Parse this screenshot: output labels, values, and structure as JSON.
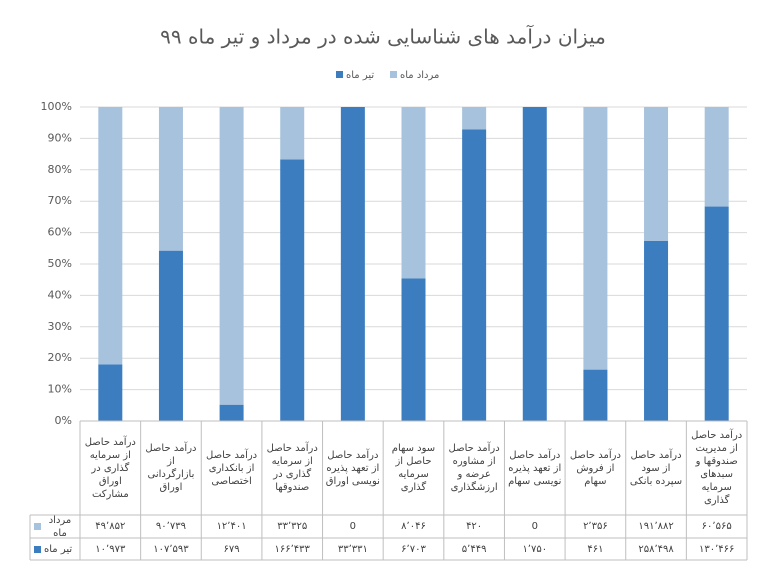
{
  "chart_data": {
    "type": "stacked_percent_bar",
    "title": "میزان درآمد های شناسایی شده در مرداد و تیر ماه ۹۹",
    "categories": [
      "درآمد حاصل از سرمایه گذاری در اوراق مشارکت",
      "درآمد حاصل از بازارگردانی اوراق",
      "درآمد حاصل از بانکداری اختصاصی",
      "درآمد حاصل از سرمایه گذاری در صندوقها",
      "درآمد حاصل از تعهد پذیره نویسی اوراق",
      "سود سهام حاصل از سرمایه گذاری",
      "درآمد حاصل از مشاوره عرضه و ارزشگذاری",
      "درآمد حاصل از تعهد پذیره نویسی سهام",
      "درآمد حاصل از فروش سهام",
      "درآمد حاصل از سود سپرده بانکی",
      "درآمد حاصل از مدیریت صندوقها و سبدهای سرمایه گذاری"
    ],
    "series": [
      {
        "name": "تیر ماه",
        "color": "#3b7dbf",
        "values": [
          10973,
          107593,
          679,
          166433,
          33331,
          6703,
          5449,
          1750,
          461,
          258498,
          130466
        ],
        "value_labels": [
          "۱۰٬۹۷۳",
          "۱۰۷٬۵۹۳",
          "۶۷۹",
          "۱۶۶٬۴۳۳",
          "۳۳٬۳۳۱",
          "۶٬۷۰۳",
          "۵٬۴۴۹",
          "۱٬۷۵۰",
          "۴۶۱",
          "۲۵۸٬۴۹۸",
          "۱۳۰٬۴۶۶"
        ]
      },
      {
        "name": "مرداد ماه",
        "color": "#a7c2dc",
        "values": [
          49852,
          90739,
          12401,
          33325,
          0,
          8046,
          420,
          0,
          2356,
          191882,
          60565
        ],
        "value_labels": [
          "۴۹٬۸۵۲",
          "۹۰٬۷۳۹",
          "۱۲٬۴۰۱",
          "۳۳٬۳۲۵",
          "0",
          "۸٬۰۴۶",
          "۴۲۰",
          "0",
          "۲٬۳۵۶",
          "۱۹۱٬۸۸۲",
          "۶۰٬۵۶۵"
        ]
      }
    ],
    "ylim": [
      0,
      100
    ],
    "yticks": [
      {
        "value": 0,
        "label": "0%"
      },
      {
        "value": 10,
        "label": "10%"
      },
      {
        "value": 20,
        "label": "20%"
      },
      {
        "value": 30,
        "label": "30%"
      },
      {
        "value": 40,
        "label": "40%"
      },
      {
        "value": 50,
        "label": "50%"
      },
      {
        "value": 60,
        "label": "60%"
      },
      {
        "value": 70,
        "label": "70%"
      },
      {
        "value": 80,
        "label": "80%"
      },
      {
        "value": 90,
        "label": "90%"
      },
      {
        "value": 100,
        "label": "100%"
      }
    ],
    "grid": true
  }
}
